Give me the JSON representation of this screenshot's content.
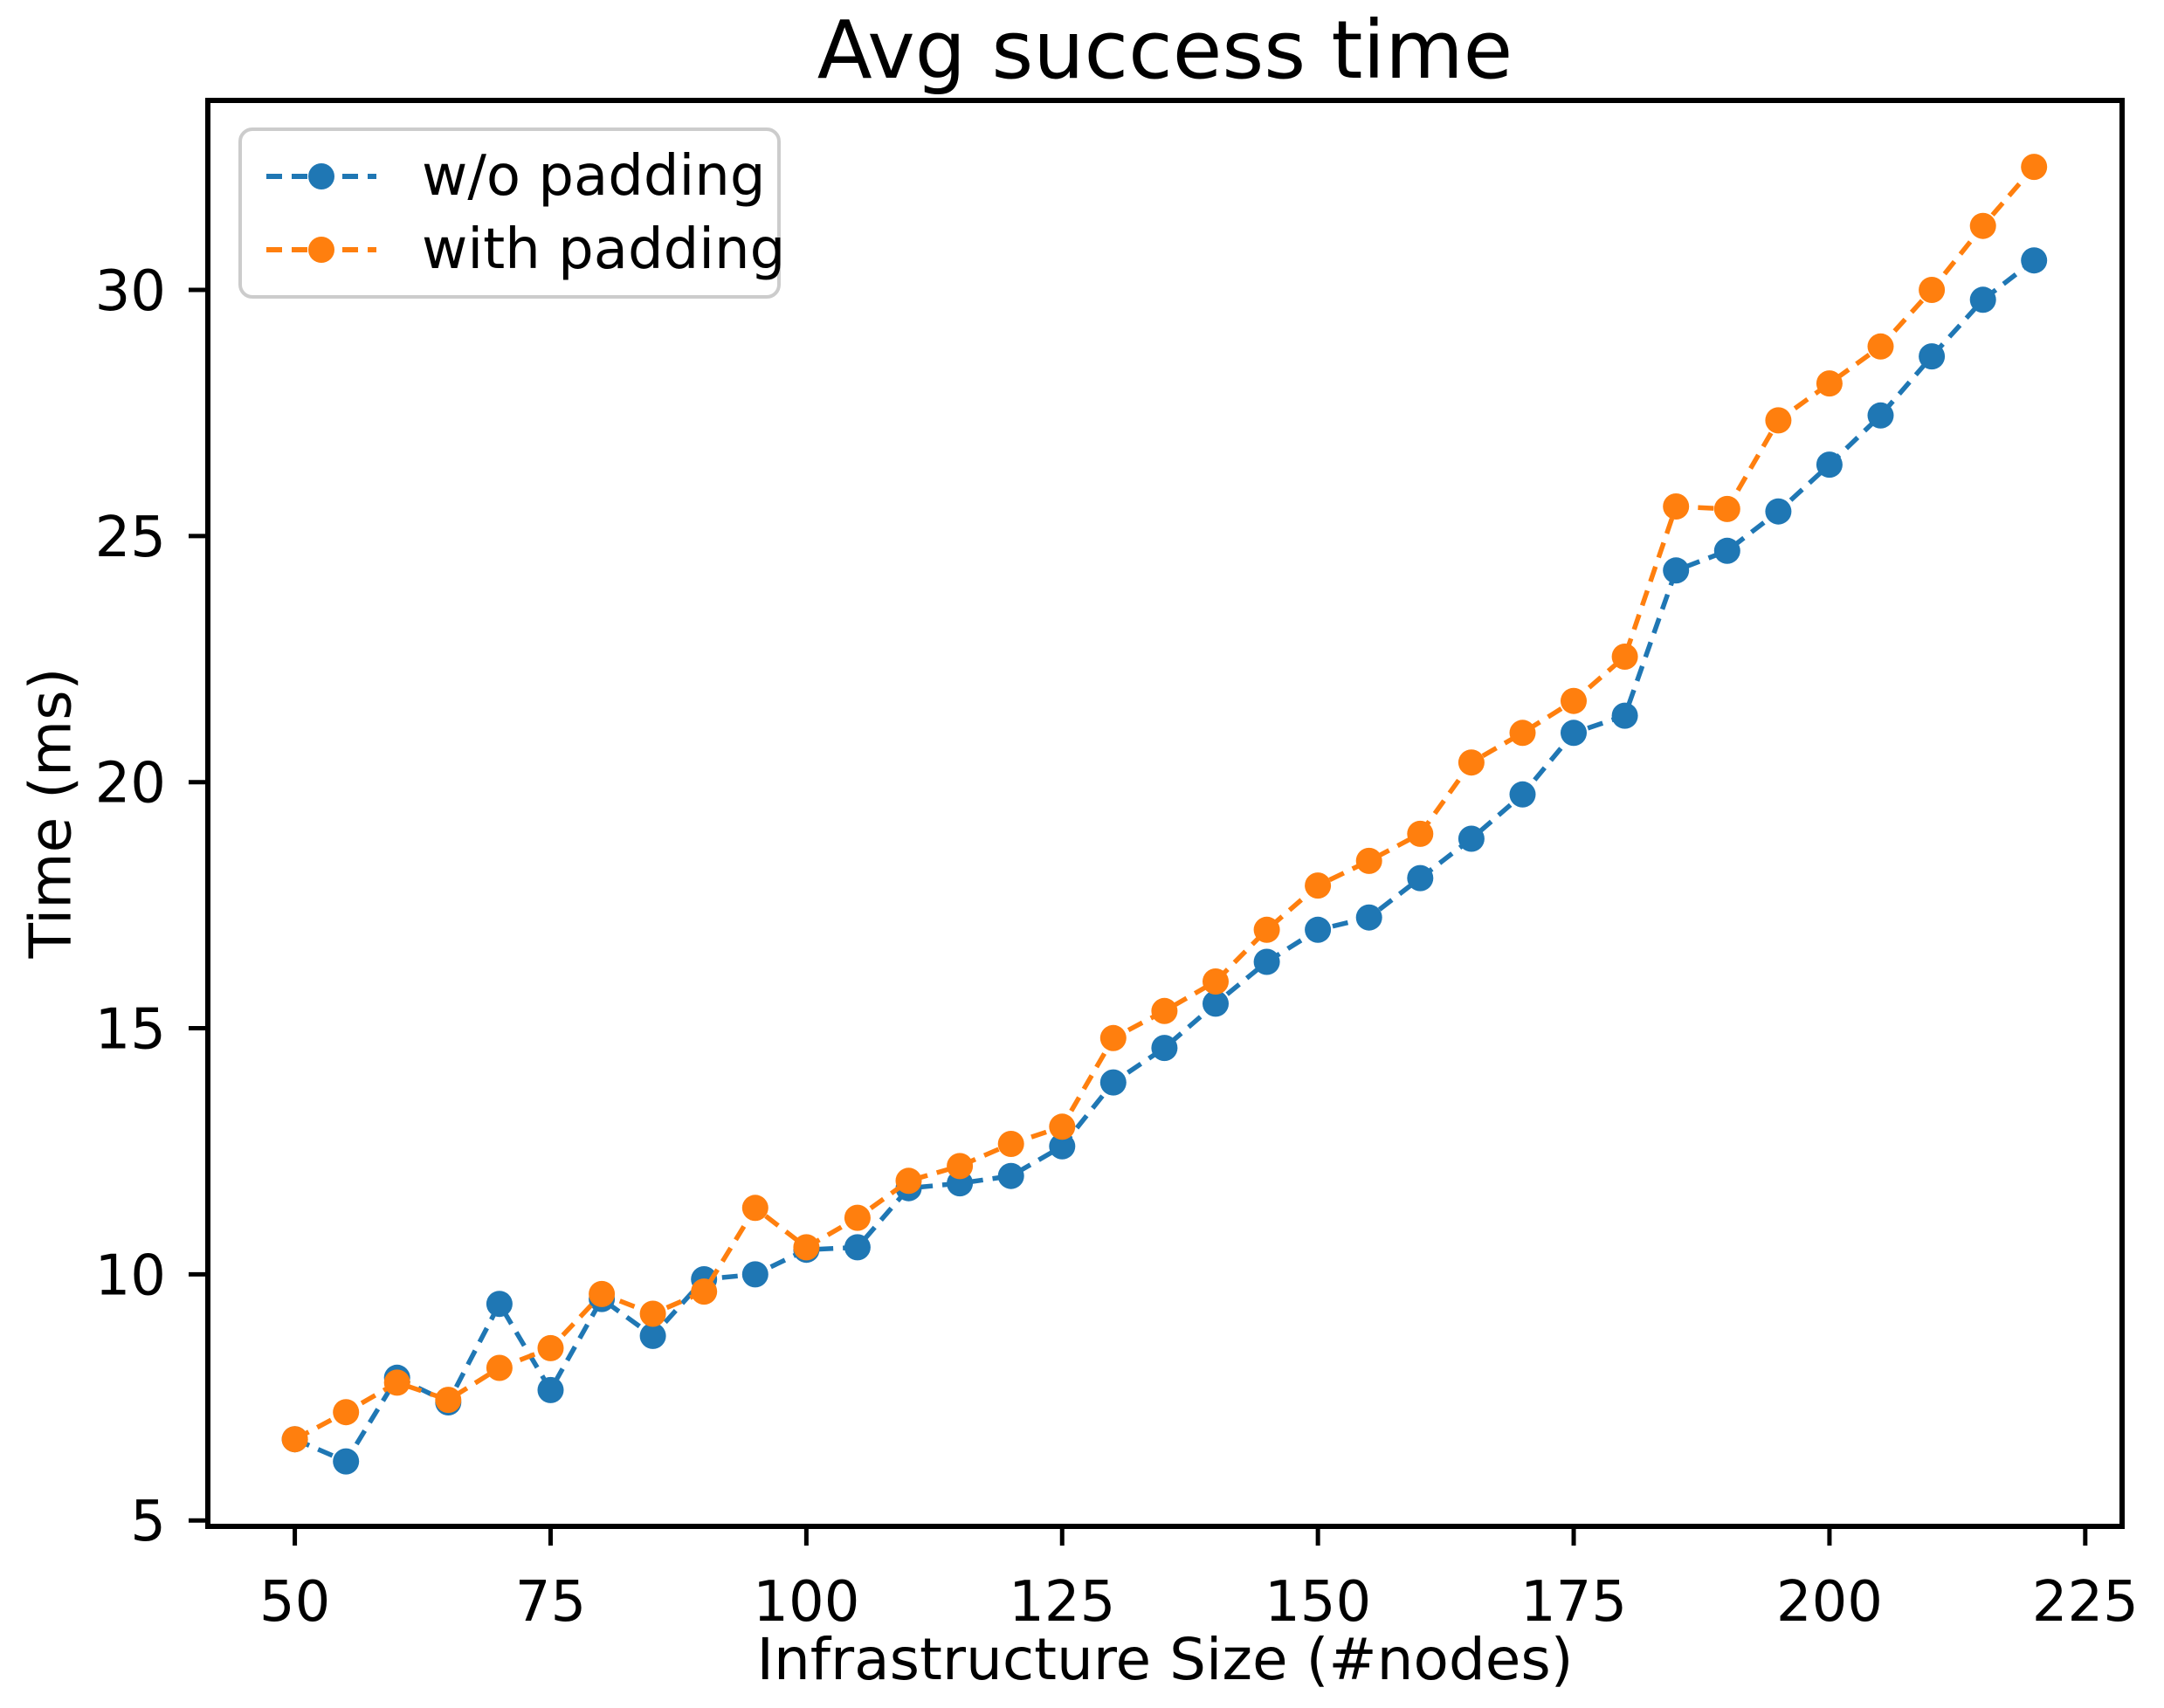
{
  "chart_data": {
    "type": "line",
    "title": "Avg success time",
    "xlabel": "Infrastructure Size (#nodes)",
    "ylabel": "Time (ms)",
    "x": [
      50,
      55,
      60,
      65,
      70,
      75,
      80,
      85,
      90,
      95,
      100,
      105,
      110,
      115,
      120,
      125,
      130,
      135,
      140,
      145,
      150,
      155,
      160,
      165,
      170,
      175,
      180,
      185,
      190,
      195,
      200,
      205,
      210,
      215,
      220
    ],
    "series": [
      {
        "name": "w/o padding",
        "color": "#1f77b4",
        "values": [
          6.65,
          6.2,
          7.9,
          7.4,
          9.4,
          7.65,
          9.5,
          8.75,
          9.9,
          10.0,
          10.5,
          10.55,
          11.75,
          11.85,
          12.0,
          12.6,
          13.9,
          14.6,
          15.5,
          16.35,
          17.0,
          17.25,
          18.05,
          18.85,
          19.75,
          21.0,
          21.35,
          24.3,
          24.7,
          25.5,
          26.45,
          27.45,
          28.65,
          29.8,
          30.6
        ]
      },
      {
        "name": "with padding",
        "color": "#ff7f0e",
        "values": [
          6.65,
          7.2,
          7.8,
          7.45,
          8.1,
          8.5,
          9.6,
          9.2,
          9.65,
          11.35,
          10.55,
          11.15,
          11.9,
          12.2,
          12.65,
          13.0,
          14.8,
          15.35,
          15.95,
          17.0,
          17.9,
          18.4,
          18.95,
          20.4,
          21.0,
          21.65,
          22.55,
          25.6,
          25.55,
          27.35,
          28.1,
          28.85,
          30.0,
          31.3,
          32.5
        ]
      }
    ],
    "x_ticks": [
      50,
      75,
      100,
      125,
      150,
      175,
      200,
      225
    ],
    "y_ticks": [
      5,
      10,
      15,
      20,
      25,
      30
    ],
    "xlim": [
      41.5,
      228.6
    ],
    "ylim": [
      4.88,
      33.85
    ],
    "grid": false,
    "legend_position": "upper left",
    "line_style": "dashed",
    "marker": "circle"
  }
}
